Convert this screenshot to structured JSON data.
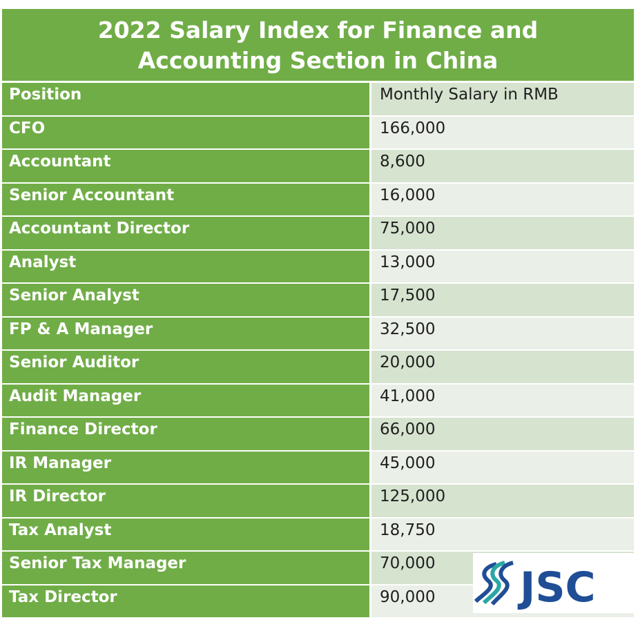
{
  "title": "2022 Salary Index for Finance and Accounting Section in China",
  "table": {
    "headers": [
      "Position",
      "Monthly Salary in RMB"
    ],
    "rows": [
      {
        "position": "CFO",
        "salary": "166,000"
      },
      {
        "position": "Accountant",
        "salary": "8,600"
      },
      {
        "position": "Senior Accountant",
        "salary": "16,000"
      },
      {
        "position": "Accountant Director",
        "salary": "75,000"
      },
      {
        "position": "Analyst",
        "salary": "13,000"
      },
      {
        "position": "Senior Analyst",
        "salary": "17,500"
      },
      {
        "position": "FP & A Manager",
        "salary": "32,500"
      },
      {
        "position": "Senior Auditor",
        "salary": "20,000"
      },
      {
        "position": "Audit Manager",
        "salary": "41,000"
      },
      {
        "position": "Finance Director",
        "salary": "66,000"
      },
      {
        "position": "IR Manager",
        "salary": "45,000"
      },
      {
        "position": "IR Director",
        "salary": "125,000"
      },
      {
        "position": "Tax Analyst",
        "salary": "18,750"
      },
      {
        "position": "Senior Tax Manager",
        "salary": "70,000"
      },
      {
        "position": "Tax Director",
        "salary": "90,000"
      }
    ]
  },
  "logo": {
    "text": "JSC",
    "icon": "jsc-swirl-logo",
    "colors": {
      "blue": "#1f4e96",
      "teal": "#2aa7a4"
    }
  },
  "colors": {
    "green": "#70ad47",
    "row_light": "#eaefe7",
    "row_mid": "#d6e3cf"
  }
}
